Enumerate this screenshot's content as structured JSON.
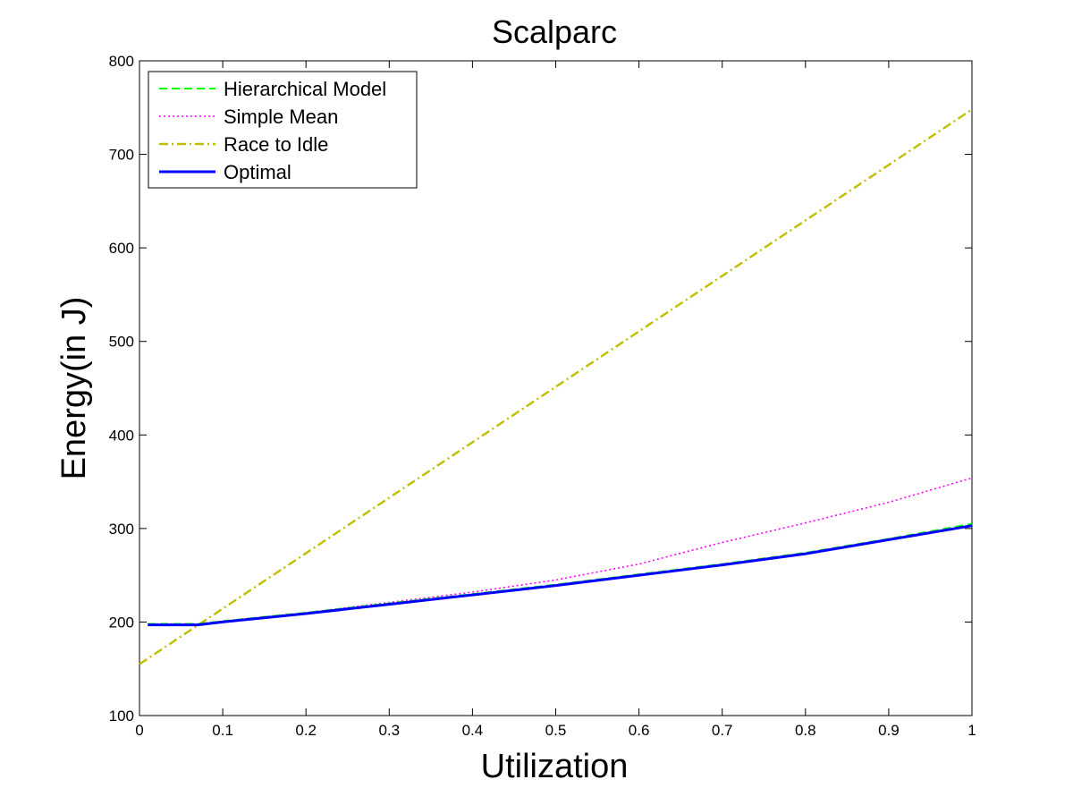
{
  "chart_data": {
    "type": "line",
    "title": "Scalparc",
    "xlabel": "Utilization",
    "ylabel": "Energy(in J)",
    "xlim": [
      0,
      1
    ],
    "ylim": [
      100,
      800
    ],
    "xticks": [
      0,
      0.1,
      0.2,
      0.3,
      0.4,
      0.5,
      0.6,
      0.7,
      0.8,
      0.9,
      1
    ],
    "xtick_labels": [
      "0",
      "0.1",
      "0.2",
      "0.3",
      "0.4",
      "0.5",
      "0.6",
      "0.7",
      "0.8",
      "0.9",
      "1"
    ],
    "yticks": [
      100,
      200,
      300,
      400,
      500,
      600,
      700,
      800
    ],
    "ytick_labels": [
      "100",
      "200",
      "300",
      "400",
      "500",
      "600",
      "700",
      "800"
    ],
    "grid": false,
    "legend_position": "top-left",
    "series": [
      {
        "name": "Hierarchical Model",
        "color": "#00ff00",
        "style": "dashed",
        "x": [
          0.01,
          0.07,
          0.1,
          0.2,
          0.3,
          0.4,
          0.5,
          0.6,
          0.7,
          0.8,
          0.9,
          1.0
        ],
        "y": [
          198,
          198,
          201,
          210,
          220,
          230,
          240,
          251,
          262,
          274,
          289,
          305
        ]
      },
      {
        "name": "Simple Mean",
        "color": "#ff00ff",
        "style": "dotted",
        "x": [
          0.01,
          0.07,
          0.1,
          0.2,
          0.3,
          0.4,
          0.5,
          0.6,
          0.7,
          0.8,
          0.9,
          1.0
        ],
        "y": [
          198,
          198,
          201,
          210,
          221,
          232,
          245,
          262,
          285,
          306,
          328,
          354
        ]
      },
      {
        "name": "Race to Idle",
        "color": "#bfbf00",
        "style": "dashdot",
        "x": [
          0.0,
          1.0
        ],
        "y": [
          155,
          748
        ]
      },
      {
        "name": "Optimal",
        "color": "#0000ff",
        "style": "solid",
        "x": [
          0.01,
          0.07,
          0.1,
          0.2,
          0.3,
          0.4,
          0.5,
          0.6,
          0.7,
          0.8,
          0.9,
          1.0
        ],
        "y": [
          197,
          197,
          200,
          209,
          219,
          229,
          239,
          250,
          261,
          273,
          288,
          303
        ]
      }
    ]
  }
}
